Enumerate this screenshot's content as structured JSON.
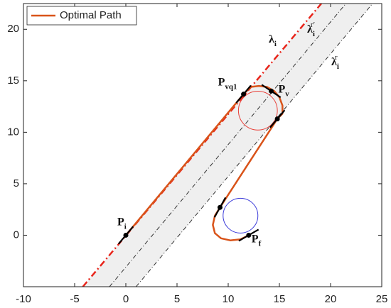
{
  "chart_data": {
    "type": "line",
    "xlim": [
      -10,
      25
    ],
    "ylim": [
      -5,
      22.5
    ],
    "xticks": [
      -10,
      -5,
      0,
      5,
      10,
      15,
      20,
      25
    ],
    "yticks": [
      0,
      5,
      10,
      15,
      20
    ],
    "grid": false,
    "legend": "upper left",
    "series": [
      {
        "name": "Optimal Path",
        "color": "#d95319",
        "x": [
          0,
          11.5,
          12.2,
          13,
          13.8,
          14.5,
          15,
          15.3,
          15.3,
          14.8,
          9.2,
          8.7,
          8.5,
          8.7,
          9.3,
          10.2,
          11.2,
          12
        ],
        "y": [
          0,
          13.7,
          14.4,
          14.5,
          14.4,
          14,
          13.4,
          12.6,
          11.8,
          11.3,
          2.7,
          1.9,
          1,
          0.2,
          -0.3,
          -0.5,
          -0.4,
          0
        ]
      }
    ],
    "lines": [
      {
        "label": {
          "base": "λ",
          "sub": "i"
        },
        "color": "#e8241a",
        "x": [
          -4.2,
          19.1
        ],
        "y": [
          -5,
          22.5
        ]
      },
      {
        "label": {
          "base": "λ",
          "sub": "i",
          "sup": "r′"
        },
        "color": "#333333",
        "x": [
          -1.6,
          21.5
        ],
        "y": [
          -5,
          22.5
        ]
      },
      {
        "label": {
          "base": "λ",
          "sub": "i",
          "sup": "r"
        },
        "color": "#333333",
        "x": [
          1,
          24.1
        ],
        "y": [
          -5,
          22.5
        ]
      }
    ],
    "circles": [
      {
        "cx": 12.9,
        "cy": 12.1,
        "r": 1.9,
        "color": "#e8413a"
      },
      {
        "cx": 11.2,
        "cy": 1.9,
        "r": 1.7,
        "color": "#3a3ad9"
      }
    ],
    "markers": [
      {
        "x": 0,
        "y": 0,
        "heading": 50,
        "label": {
          "base": "P",
          "sub": "i"
        }
      },
      {
        "x": 11.5,
        "y": 13.7,
        "heading": 50,
        "label": {
          "base": "P",
          "sub": "vq1"
        }
      },
      {
        "x": 14.2,
        "y": 14,
        "heading": -34,
        "label": {
          "base": "P",
          "sub": "v"
        }
      },
      {
        "x": 14.8,
        "y": 11.3,
        "heading": 50
      },
      {
        "x": 9.2,
        "y": 2.7,
        "heading": 61
      },
      {
        "x": 12,
        "y": 0,
        "heading": 30,
        "label": {
          "base": "P",
          "sub": "f"
        }
      }
    ]
  }
}
